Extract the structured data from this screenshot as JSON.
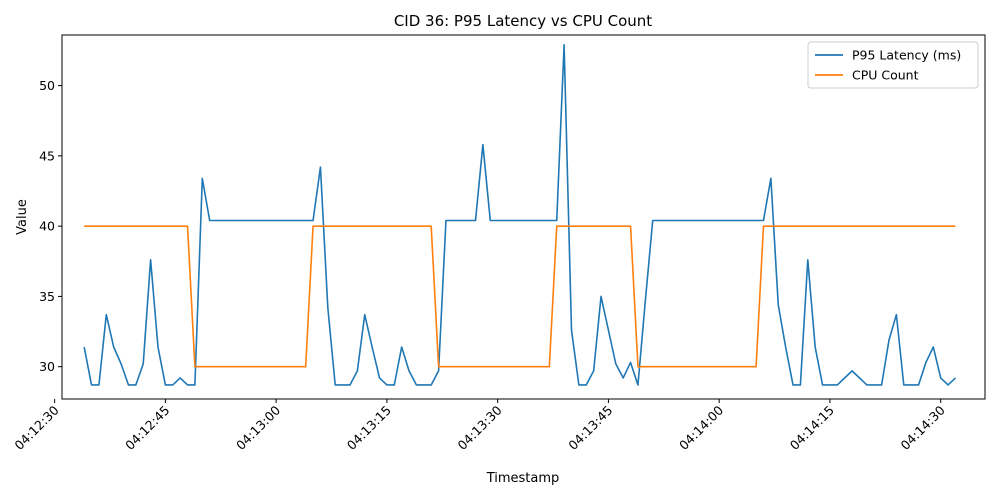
{
  "chart_data": {
    "type": "line",
    "title": "CID 36: P95 Latency vs CPU Count",
    "xlabel": "Timestamp",
    "ylabel": "Value",
    "x_unit": "time",
    "x_start": "04:12:34",
    "x_end": "04:14:32",
    "xlim": [
      "04:12:31",
      "04:14:36"
    ],
    "ylim": [
      27.7,
      53.6
    ],
    "grid": false,
    "legend_position": "top-right",
    "x_ticks": [
      "04:12:30",
      "04:12:45",
      "04:13:00",
      "04:13:15",
      "04:13:30",
      "04:13:45",
      "04:14:00",
      "04:14:15",
      "04:14:30"
    ],
    "y_ticks": [
      30,
      35,
      40,
      45,
      50
    ],
    "series": [
      {
        "name": "P95 Latency (ms)",
        "color": "#1f77b4",
        "points": [
          [
            "04:12:34",
            31.4
          ],
          [
            "04:12:35",
            28.7
          ],
          [
            "04:12:36",
            28.7
          ],
          [
            "04:12:37",
            33.7
          ],
          [
            "04:12:38",
            31.4
          ],
          [
            "04:12:39",
            30.2
          ],
          [
            "04:12:40",
            28.7
          ],
          [
            "04:12:41",
            28.7
          ],
          [
            "04:12:42",
            30.2
          ],
          [
            "04:12:43",
            37.6
          ],
          [
            "04:12:44",
            31.4
          ],
          [
            "04:12:45",
            28.7
          ],
          [
            "04:12:46",
            28.7
          ],
          [
            "04:12:47",
            29.2
          ],
          [
            "04:12:48",
            28.7
          ],
          [
            "04:12:49",
            28.7
          ],
          [
            "04:12:50",
            43.4
          ],
          [
            "04:12:51",
            40.4
          ],
          [
            "04:13:05",
            40.4
          ],
          [
            "04:13:06",
            44.2
          ],
          [
            "04:13:07",
            34.2
          ],
          [
            "04:13:08",
            28.7
          ],
          [
            "04:13:10",
            28.7
          ],
          [
            "04:13:11",
            29.7
          ],
          [
            "04:13:12",
            33.7
          ],
          [
            "04:13:13",
            31.4
          ],
          [
            "04:13:14",
            29.2
          ],
          [
            "04:13:15",
            28.7
          ],
          [
            "04:13:16",
            28.7
          ],
          [
            "04:13:17",
            31.4
          ],
          [
            "04:13:18",
            29.7
          ],
          [
            "04:13:19",
            28.7
          ],
          [
            "04:13:21",
            28.7
          ],
          [
            "04:13:22",
            29.7
          ],
          [
            "04:13:23",
            40.4
          ],
          [
            "04:13:27",
            40.4
          ],
          [
            "04:13:28",
            45.8
          ],
          [
            "04:13:29",
            40.4
          ],
          [
            "04:13:38",
            40.4
          ],
          [
            "04:13:39",
            52.9
          ],
          [
            "04:13:40",
            32.6
          ],
          [
            "04:13:41",
            28.7
          ],
          [
            "04:13:42",
            28.7
          ],
          [
            "04:13:43",
            29.7
          ],
          [
            "04:13:44",
            35.0
          ],
          [
            "04:13:45",
            32.6
          ],
          [
            "04:13:46",
            30.2
          ],
          [
            "04:13:47",
            29.2
          ],
          [
            "04:13:48",
            30.3
          ],
          [
            "04:13:49",
            28.7
          ],
          [
            "04:13:50",
            34.7
          ],
          [
            "04:13:51",
            40.4
          ],
          [
            "04:14:06",
            40.4
          ],
          [
            "04:14:07",
            43.4
          ],
          [
            "04:14:08",
            34.4
          ],
          [
            "04:14:09",
            31.4
          ],
          [
            "04:14:10",
            28.7
          ],
          [
            "04:14:11",
            28.7
          ],
          [
            "04:14:12",
            37.6
          ],
          [
            "04:14:13",
            31.4
          ],
          [
            "04:14:14",
            28.7
          ],
          [
            "04:14:16",
            28.7
          ],
          [
            "04:14:18",
            29.7
          ],
          [
            "04:14:20",
            28.7
          ],
          [
            "04:14:22",
            28.7
          ],
          [
            "04:14:23",
            31.9
          ],
          [
            "04:14:24",
            33.7
          ],
          [
            "04:14:25",
            28.7
          ],
          [
            "04:14:27",
            28.7
          ],
          [
            "04:14:28",
            30.3
          ],
          [
            "04:14:29",
            31.4
          ],
          [
            "04:14:30",
            29.2
          ],
          [
            "04:14:31",
            28.7
          ],
          [
            "04:14:32",
            29.2
          ]
        ]
      },
      {
        "name": "CPU Count",
        "color": "#ff7f0e",
        "points": [
          [
            "04:12:34",
            40
          ],
          [
            "04:12:48",
            40
          ],
          [
            "04:12:49",
            30
          ],
          [
            "04:13:04",
            30
          ],
          [
            "04:13:05",
            40
          ],
          [
            "04:13:21",
            40
          ],
          [
            "04:13:22",
            30
          ],
          [
            "04:13:37",
            30
          ],
          [
            "04:13:38",
            40
          ],
          [
            "04:13:48",
            40
          ],
          [
            "04:13:49",
            30
          ],
          [
            "04:14:05",
            30
          ],
          [
            "04:14:06",
            40
          ],
          [
            "04:14:32",
            40
          ]
        ]
      }
    ]
  }
}
